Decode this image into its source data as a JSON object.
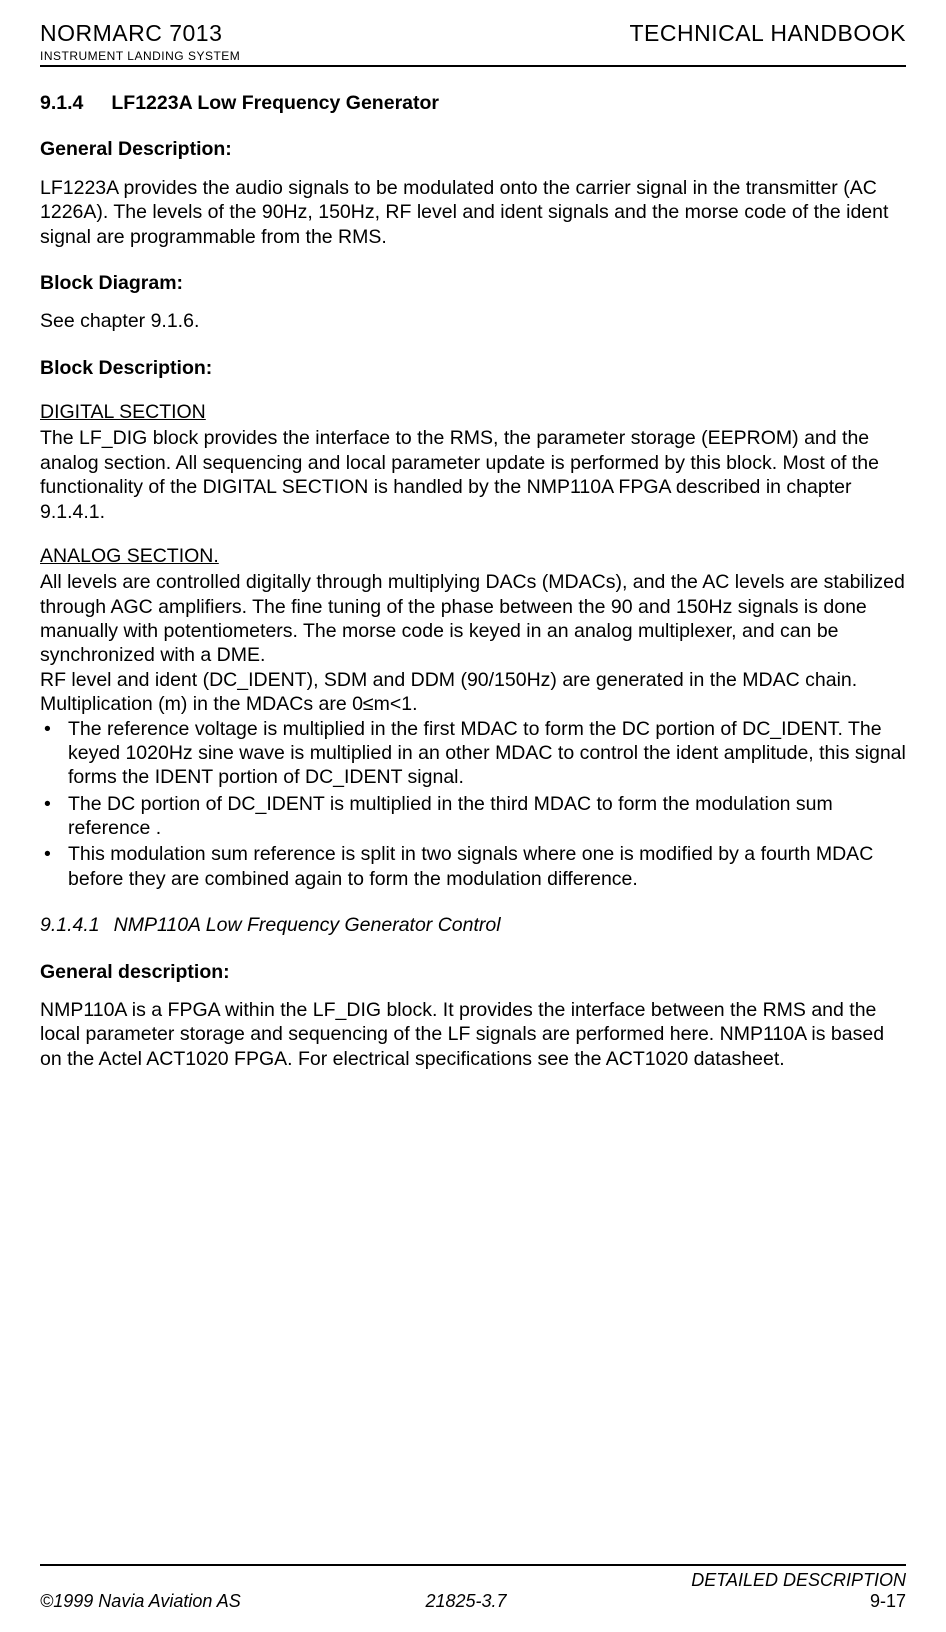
{
  "header": {
    "product_name": "NORMARC 7013",
    "product_sub": "INSTRUMENT LANDING SYSTEM",
    "doc_type": "TECHNICAL HANDBOOK"
  },
  "section": {
    "number": "9.1.4",
    "title": "LF1223A Low Frequency Generator"
  },
  "general_description": {
    "heading": "General Description:",
    "text": "LF1223A provides the audio signals to be modulated onto the carrier signal in the transmitter (AC 1226A). The levels of the 90Hz, 150Hz, RF level and ident signals and the morse code of the ident signal are programmable from the RMS."
  },
  "block_diagram": {
    "heading": "Block Diagram:",
    "text": "See chapter 9.1.6."
  },
  "block_description": {
    "heading": "Block Description:"
  },
  "digital_section": {
    "heading": "DIGITAL SECTION",
    "text": "The LF_DIG block provides the interface to the RMS, the parameter storage (EEPROM) and the analog section. All sequencing and local parameter update is performed by this block. Most of the functionality of the DIGITAL SECTION is handled by the NMP110A FPGA described in chapter 9.1.4.1."
  },
  "analog_section": {
    "heading": "ANALOG SECTION.",
    "para1": "All levels are controlled digitally through multiplying DACs (MDACs), and the AC levels are stabilized through AGC amplifiers. The fine tuning of the phase between the 90 and 150Hz signals is done manually with potentiometers. The morse code is keyed in an analog multiplexer, and can be synchronized with a DME.",
    "para2": "RF level and ident (DC_IDENT), SDM and DDM (90/150Hz) are generated in the MDAC chain. Multiplication (m) in the MDACs are 0≤m<1.",
    "bullets": [
      "The reference voltage is multiplied in the first MDAC to form the DC portion of DC_IDENT. The keyed 1020Hz sine wave is multiplied in an other MDAC to control the ident amplitude, this signal forms the IDENT portion of DC_IDENT signal.",
      "The DC portion of DC_IDENT is multiplied in the third MDAC to form the modulation sum reference .",
      "This modulation sum reference is split in two signals where one is modified by a fourth MDAC before they are combined again to form the modulation difference."
    ]
  },
  "subsection": {
    "number": "9.1.4.1",
    "title": "NMP110A Low Frequency Generator Control"
  },
  "general_description2": {
    "heading": "General description:",
    "text": "NMP110A is a FPGA within the LF_DIG block. It provides the interface between the RMS and the local parameter storage and sequencing of the LF signals are performed here. NMP110A is based on the Actel ACT1020 FPGA. For electrical specifications see the ACT1020 datasheet."
  },
  "footer": {
    "copyright": "©1999 Navia Aviation AS",
    "doc_number": "21825-3.7",
    "section_name": "DETAILED DESCRIPTION",
    "page_number": "9-17"
  }
}
